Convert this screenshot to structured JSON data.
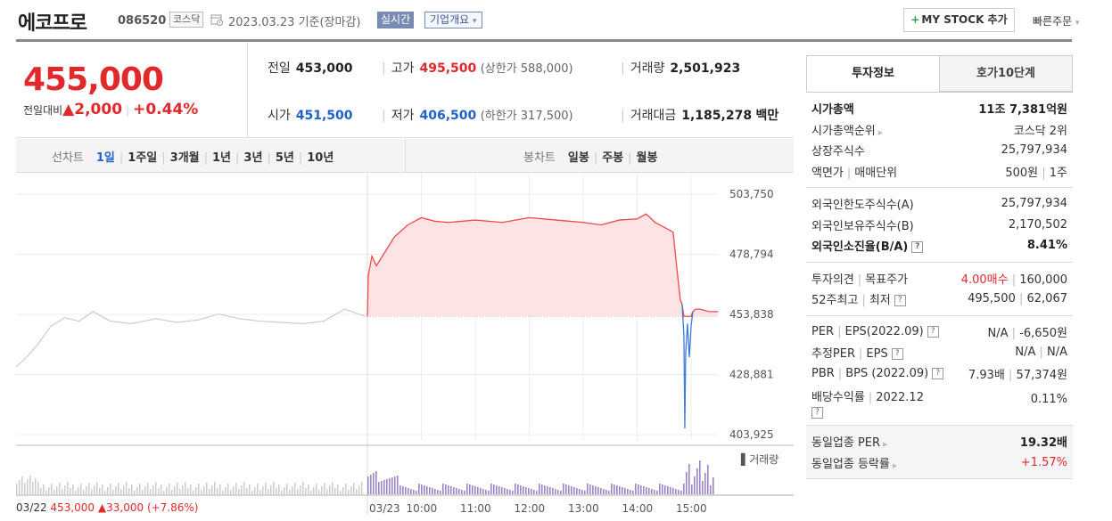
{
  "header": {
    "stock_name": "에코프로",
    "stock_code": "086520",
    "market_badge": "코스닥",
    "date_text": "2023.03.23  기준(장마감)",
    "realtime_badge": "실시간",
    "company_info_label": "기업개요",
    "mystock_label": "MY STOCK 추가",
    "quick_order_label": "빠른주문"
  },
  "price": {
    "current": "455,000",
    "change_label": "전일대비",
    "change_amount": "2,000",
    "change_pct": "+0.44%"
  },
  "stats": {
    "prev_label": "전일",
    "prev_value": "453,000",
    "high_label": "고가",
    "high_value": "495,500",
    "upper_limit": "(상한가 588,000)",
    "volume_label": "거래량",
    "volume_value": "2,501,923",
    "open_label": "시가",
    "open_value": "451,500",
    "low_label": "저가",
    "low_value": "406,500",
    "lower_limit": "(하한가 317,500)",
    "amount_label": "거래대금",
    "amount_value": "1,185,278",
    "amount_unit": "백만"
  },
  "chart_tabs": {
    "line_label": "선차트",
    "line_items": [
      "1일",
      "1주일",
      "3개월",
      "1년",
      "3년",
      "5년",
      "10년"
    ],
    "candle_label": "봉차트",
    "candle_items": [
      "일봉",
      "주봉",
      "월봉"
    ]
  },
  "chart_data": {
    "type": "line",
    "y_ticks": [
      "503,750",
      "478,794",
      "453,838",
      "428,881",
      "403,925"
    ],
    "ylim": [
      403925,
      503750
    ],
    "reference_price": 453000,
    "x_ticks": [
      "10:00",
      "11:00",
      "12:00",
      "13:00",
      "14:00",
      "15:00"
    ],
    "prev_day": {
      "label": "03/22",
      "close": "453,000",
      "change": "33,000",
      "change_pct": "(+7.86%)",
      "series": [
        {
          "t": 0,
          "price": 432000
        },
        {
          "t": 3,
          "price": 436000
        },
        {
          "t": 6,
          "price": 441000
        },
        {
          "t": 10,
          "price": 449000
        },
        {
          "t": 14,
          "price": 452500
        },
        {
          "t": 18,
          "price": 451000
        },
        {
          "t": 22,
          "price": 455000
        },
        {
          "t": 27,
          "price": 451000
        },
        {
          "t": 33,
          "price": 450000
        },
        {
          "t": 40,
          "price": 452000
        },
        {
          "t": 46,
          "price": 450500
        },
        {
          "t": 52,
          "price": 451500
        },
        {
          "t": 58,
          "price": 454000
        },
        {
          "t": 64,
          "price": 452000
        },
        {
          "t": 70,
          "price": 451000
        },
        {
          "t": 76,
          "price": 450500
        },
        {
          "t": 82,
          "price": 450000
        },
        {
          "t": 88,
          "price": 451000
        },
        {
          "t": 94,
          "price": 456000
        },
        {
          "t": 100,
          "price": 453000
        }
      ]
    },
    "today": {
      "label": "03/23",
      "series": [
        {
          "time": "09:00",
          "price": 453000
        },
        {
          "time": "09:01",
          "price": 470000
        },
        {
          "time": "09:05",
          "price": 478000
        },
        {
          "time": "09:10",
          "price": 474000
        },
        {
          "time": "09:20",
          "price": 480000
        },
        {
          "time": "09:30",
          "price": 486000
        },
        {
          "time": "09:45",
          "price": 491000
        },
        {
          "time": "10:00",
          "price": 494000
        },
        {
          "time": "10:15",
          "price": 492500
        },
        {
          "time": "10:30",
          "price": 492000
        },
        {
          "time": "11:00",
          "price": 493000
        },
        {
          "time": "11:30",
          "price": 492000
        },
        {
          "time": "12:00",
          "price": 494000
        },
        {
          "time": "12:30",
          "price": 493000
        },
        {
          "time": "13:00",
          "price": 492000
        },
        {
          "time": "13:20",
          "price": 491000
        },
        {
          "time": "13:40",
          "price": 493000
        },
        {
          "time": "14:00",
          "price": 493500
        },
        {
          "time": "14:10",
          "price": 495500
        },
        {
          "time": "14:20",
          "price": 492000
        },
        {
          "time": "14:30",
          "price": 490000
        },
        {
          "time": "14:40",
          "price": 488000
        },
        {
          "time": "14:45",
          "price": 470000
        },
        {
          "time": "14:48",
          "price": 460000
        },
        {
          "time": "14:50",
          "price": 458000
        },
        {
          "time": "14:52",
          "price": 445000
        },
        {
          "time": "14:53",
          "price": 406500
        },
        {
          "time": "14:54",
          "price": 438000
        },
        {
          "time": "14:56",
          "price": 450000
        },
        {
          "time": "14:58",
          "price": 436000
        },
        {
          "time": "15:00",
          "price": 449000
        },
        {
          "time": "15:02",
          "price": 455000
        },
        {
          "time": "15:05",
          "price": 456000
        },
        {
          "time": "15:10",
          "price": 456000
        },
        {
          "time": "15:20",
          "price": 455000
        },
        {
          "time": "15:30",
          "price": 455000
        }
      ]
    },
    "volume_label": "거래량",
    "colors": {
      "up_line": "#f04848",
      "up_fill": "#fde3e4",
      "down_line": "#3e7bdb",
      "prev_line": "#cccccc",
      "volume": "#9b84c9"
    }
  },
  "panel": {
    "tab_active": "투자정보",
    "tab_other": "호가10단계",
    "sections": [
      {
        "rows": [
          {
            "label": "시가총액",
            "value": "11조 7,381억원",
            "bold": true
          },
          {
            "label": "시가총액순위",
            "arrow": true,
            "value": "코스닥 2위"
          },
          {
            "label": "상장주식수",
            "value": "25,797,934"
          },
          {
            "label": "액면가",
            "label2": "매매단위",
            "value": "500원",
            "value2": "1주"
          }
        ]
      },
      {
        "rows": [
          {
            "label": "외국인한도주식수(A)",
            "value": "25,797,934"
          },
          {
            "label": "외국인보유주식수(B)",
            "value": "2,170,502"
          },
          {
            "label": "외국인소진율(B/A)",
            "help": true,
            "value": "8.41%",
            "bold": true
          }
        ]
      },
      {
        "rows": [
          {
            "label": "투자의견",
            "label2": "목표주가",
            "value": "4.00매수",
            "value_red": true,
            "value2": "160,000"
          },
          {
            "label": "52주최고",
            "label2": "최저",
            "help": true,
            "value": "495,500",
            "value2": "62,067"
          }
        ]
      },
      {
        "rows": [
          {
            "label": "PER",
            "label2": "EPS(2022.09)",
            "help": true,
            "value": "N/A",
            "value2": "-6,650원"
          },
          {
            "label": "추정PER",
            "label2": "EPS",
            "help": true,
            "value": "N/A",
            "value2": "N/A"
          },
          {
            "label": "PBR",
            "label2": "BPS (2022.09)",
            "help": true,
            "value": "7.93배",
            "value2": "57,374원"
          },
          {
            "label": "배당수익률",
            "label2": "2022.12",
            "help_below": true,
            "value": "0.11%"
          }
        ]
      },
      {
        "gray": true,
        "rows": [
          {
            "label": "동일업종 PER",
            "arrow": true,
            "value": "19.32배",
            "bold_value": true
          },
          {
            "label": "동일업종 등락률",
            "arrow": true,
            "value": "+1.57%",
            "value_red": true
          }
        ]
      }
    ]
  }
}
